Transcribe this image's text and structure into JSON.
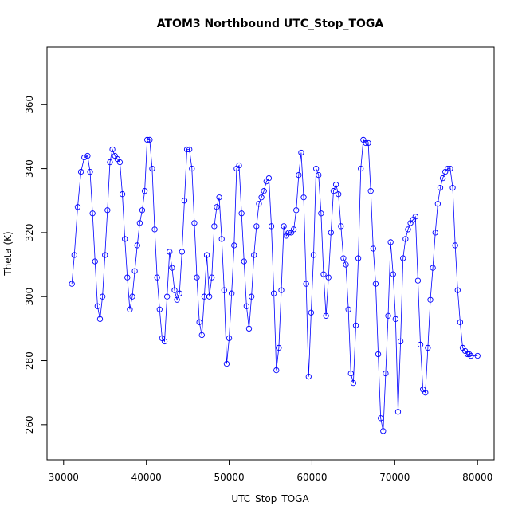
{
  "chart_data": {
    "type": "scatter",
    "title": "ATOM3 Northbound UTC_Stop_TOGA",
    "xlabel": "UTC_Stop_TOGA",
    "ylabel": "Theta (K)",
    "xlim": [
      28000,
      82000
    ],
    "ylim": [
      249,
      378
    ],
    "x_ticks": [
      30000,
      40000,
      50000,
      60000,
      70000,
      80000
    ],
    "y_ticks": [
      260,
      280,
      300,
      320,
      340,
      360
    ],
    "grid": false,
    "marker": "open-circle",
    "connect_points": true,
    "color": "#0000ff",
    "series": [
      {
        "values": [
          [
            31000,
            304
          ],
          [
            31300,
            313
          ],
          [
            31700,
            328
          ],
          [
            32100,
            339
          ],
          [
            32500,
            343.5
          ],
          [
            32900,
            344
          ],
          [
            33200,
            339
          ],
          [
            33500,
            326
          ],
          [
            33800,
            311
          ],
          [
            34100,
            297
          ],
          [
            34400,
            293
          ],
          [
            34700,
            300
          ],
          [
            35000,
            313
          ],
          [
            35300,
            327
          ],
          [
            35600,
            342
          ],
          [
            35900,
            346
          ],
          [
            36200,
            344
          ],
          [
            36500,
            343
          ],
          [
            36800,
            342
          ],
          [
            37100,
            332
          ],
          [
            37400,
            318
          ],
          [
            37700,
            306
          ],
          [
            38000,
            296
          ],
          [
            38300,
            300
          ],
          [
            38600,
            308
          ],
          [
            38900,
            316
          ],
          [
            39200,
            323
          ],
          [
            39500,
            327
          ],
          [
            39800,
            333
          ],
          [
            40100,
            349
          ],
          [
            40400,
            349
          ],
          [
            40700,
            340
          ],
          [
            41000,
            321
          ],
          [
            41300,
            306
          ],
          [
            41600,
            296
          ],
          [
            41900,
            287
          ],
          [
            42200,
            286
          ],
          [
            42500,
            300
          ],
          [
            42800,
            314
          ],
          [
            43100,
            309
          ],
          [
            43400,
            302
          ],
          [
            43700,
            299
          ],
          [
            44000,
            301
          ],
          [
            44300,
            314
          ],
          [
            44600,
            330
          ],
          [
            44900,
            346
          ],
          [
            45200,
            346
          ],
          [
            45500,
            340
          ],
          [
            45800,
            323
          ],
          [
            46100,
            306
          ],
          [
            46400,
            292
          ],
          [
            46700,
            288
          ],
          [
            47000,
            300
          ],
          [
            47300,
            313
          ],
          [
            47600,
            300
          ],
          [
            47900,
            306
          ],
          [
            48200,
            322
          ],
          [
            48500,
            328
          ],
          [
            48800,
            331
          ],
          [
            49100,
            318
          ],
          [
            49400,
            302
          ],
          [
            49700,
            279
          ],
          [
            50000,
            287
          ],
          [
            50300,
            301
          ],
          [
            50600,
            316
          ],
          [
            50900,
            340
          ],
          [
            51200,
            341
          ],
          [
            51500,
            326
          ],
          [
            51800,
            311
          ],
          [
            52100,
            297
          ],
          [
            52400,
            290
          ],
          [
            52700,
            300
          ],
          [
            53000,
            313
          ],
          [
            53300,
            322
          ],
          [
            53600,
            329
          ],
          [
            53900,
            331
          ],
          [
            54200,
            333
          ],
          [
            54500,
            336
          ],
          [
            54800,
            337
          ],
          [
            55100,
            322
          ],
          [
            55400,
            301
          ],
          [
            55700,
            277
          ],
          [
            56000,
            284
          ],
          [
            56300,
            302
          ],
          [
            56600,
            322
          ],
          [
            56900,
            319
          ],
          [
            57200,
            320
          ],
          [
            57500,
            320
          ],
          [
            57800,
            321
          ],
          [
            58100,
            327
          ],
          [
            58400,
            338
          ],
          [
            58700,
            345
          ],
          [
            59000,
            331
          ],
          [
            59300,
            304
          ],
          [
            59600,
            275
          ],
          [
            59900,
            295
          ],
          [
            60200,
            313
          ],
          [
            60500,
            340
          ],
          [
            60800,
            338
          ],
          [
            61100,
            326
          ],
          [
            61400,
            307
          ],
          [
            61700,
            294
          ],
          [
            62000,
            306
          ],
          [
            62300,
            320
          ],
          [
            62600,
            333
          ],
          [
            62900,
            335
          ],
          [
            63200,
            332
          ],
          [
            63500,
            322
          ],
          [
            63800,
            312
          ],
          [
            64100,
            310
          ],
          [
            64400,
            296
          ],
          [
            64700,
            276
          ],
          [
            65000,
            273
          ],
          [
            65300,
            291
          ],
          [
            65600,
            312
          ],
          [
            65900,
            340
          ],
          [
            66200,
            349
          ],
          [
            66500,
            348
          ],
          [
            66800,
            348
          ],
          [
            67100,
            333
          ],
          [
            67400,
            315
          ],
          [
            67700,
            304
          ],
          [
            68000,
            282
          ],
          [
            68300,
            262
          ],
          [
            68600,
            258
          ],
          [
            68900,
            276
          ],
          [
            69200,
            294
          ],
          [
            69500,
            317
          ],
          [
            69800,
            307
          ],
          [
            70100,
            293
          ],
          [
            70400,
            264
          ],
          [
            70700,
            286
          ],
          [
            71000,
            312
          ],
          [
            71300,
            318
          ],
          [
            71600,
            321
          ],
          [
            71900,
            323
          ],
          [
            72200,
            324
          ],
          [
            72500,
            325
          ],
          [
            72800,
            305
          ],
          [
            73100,
            285
          ],
          [
            73400,
            271
          ],
          [
            73700,
            270
          ],
          [
            74000,
            284
          ],
          [
            74300,
            299
          ],
          [
            74600,
            309
          ],
          [
            74900,
            320
          ],
          [
            75200,
            329
          ],
          [
            75500,
            334
          ],
          [
            75800,
            337
          ],
          [
            76100,
            339
          ],
          [
            76400,
            340
          ],
          [
            76700,
            340
          ],
          [
            77000,
            334
          ],
          [
            77300,
            316
          ],
          [
            77600,
            302
          ],
          [
            77900,
            292
          ],
          [
            78200,
            284
          ],
          [
            78500,
            283
          ],
          [
            78800,
            282
          ],
          [
            79000,
            282
          ],
          [
            79200,
            281.5
          ],
          [
            80000,
            281.5
          ]
        ]
      }
    ]
  }
}
